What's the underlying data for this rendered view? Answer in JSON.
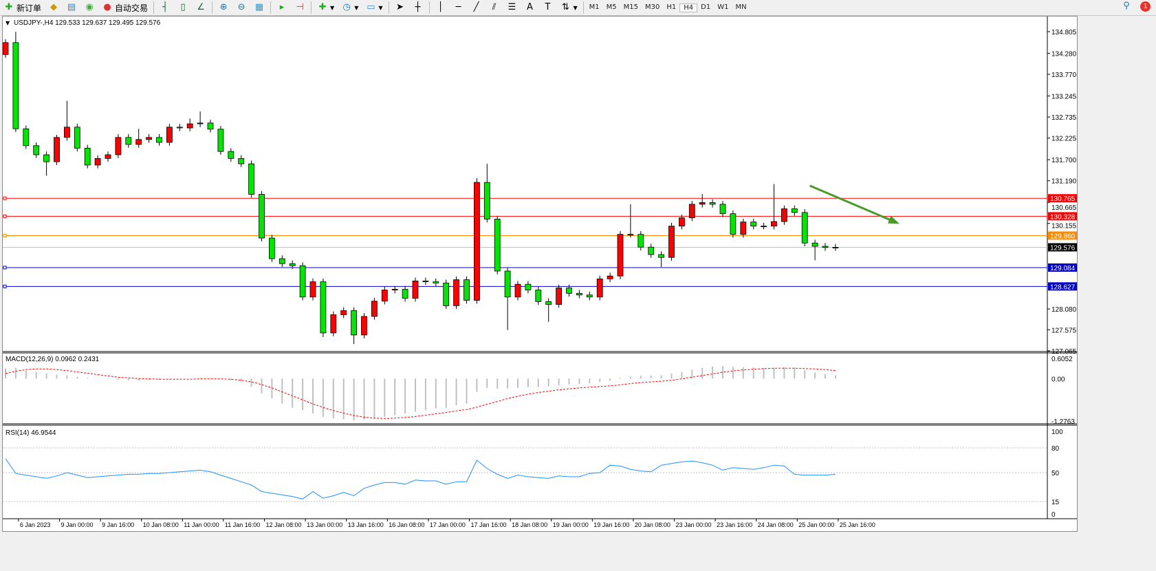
{
  "toolbar": {
    "new_order": "新订单",
    "auto_trading": "自动交易",
    "timeframes": [
      "M1",
      "M5",
      "M15",
      "M30",
      "H1",
      "H4",
      "D1",
      "W1",
      "MN"
    ],
    "active_timeframe": "H4",
    "notification_count": "1"
  },
  "chart": {
    "header": "USDJPY-,H4  129.533 129.637 129.495 129.576",
    "price_ticks": [
      "134.805",
      "134.280",
      "133.770",
      "133.245",
      "132.735",
      "132.225",
      "131.700",
      "131.190",
      "130.665",
      "130.155",
      "128.080",
      "127.575",
      "127.065"
    ],
    "price_range": [
      127.065,
      134.805
    ],
    "bull_color": "#ff0000",
    "bear_color": "#00e600",
    "time_labels": [
      "6 Jan 2023",
      "9 Jan 00:00",
      "9 Jan 16:00",
      "10 Jan 08:00",
      "11 Jan 00:00",
      "11 Jan 16:00",
      "12 Jan 08:00",
      "13 Jan 00:00",
      "13 Jan 16:00",
      "16 Jan 08:00",
      "17 Jan 00:00",
      "17 Jan 16:00",
      "18 Jan 08:00",
      "19 Jan 00:00",
      "19 Jan 16:00",
      "20 Jan 08:00",
      "23 Jan 00:00",
      "23 Jan 16:00",
      "24 Jan 08:00",
      "25 Jan 00:00",
      "25 Jan 16:00"
    ],
    "levels": [
      {
        "price": 130.765,
        "label": "130.765",
        "color": "#ff0000"
      },
      {
        "price": 130.328,
        "label": "130.328",
        "color": "#ff0000"
      },
      {
        "price": 129.86,
        "label": "129.860",
        "color": "#ff8c00"
      },
      {
        "price": 129.576,
        "label": "129.576",
        "color": "#c0c0c0",
        "label_bg": "#000000"
      },
      {
        "price": 129.084,
        "label": "129.084",
        "color": "#0000cc"
      },
      {
        "price": 128.627,
        "label": "128.627",
        "color": "#0000cc"
      }
    ],
    "arrow": {
      "from": [
        78.5,
        131.07
      ],
      "to": [
        87,
        130.17
      ],
      "color": "#4a9a2a"
    },
    "closes": [
      134.54,
      132.45,
      132.04,
      131.82,
      131.65,
      132.24,
      132.49,
      131.98,
      131.57,
      131.73,
      131.82,
      132.24,
      132.07,
      132.19,
      132.24,
      132.12,
      132.49,
      132.47,
      132.57,
      132.59,
      132.44,
      131.9,
      131.73,
      131.6,
      130.86,
      129.8,
      129.3,
      129.18,
      129.13,
      128.37,
      128.74,
      127.5,
      127.94,
      128.04,
      127.45,
      127.9,
      128.27,
      128.54,
      128.56,
      128.34,
      128.76,
      128.74,
      128.71,
      128.16,
      128.79,
      128.29,
      131.15,
      130.26,
      129.0,
      128.37,
      128.68,
      128.54,
      128.26,
      128.19,
      128.59,
      128.46,
      128.42,
      128.37,
      128.81,
      128.88,
      129.89,
      129.89,
      129.58,
      129.4,
      129.33,
      130.09,
      130.29,
      130.62,
      130.66,
      130.62,
      130.39,
      129.89,
      130.19,
      130.09,
      130.09,
      130.2,
      130.51,
      130.42,
      129.68,
      129.6,
      129.57,
      129.576
    ],
    "first_open": 134.25,
    "wick_highs": {
      "0": 134.62,
      "1": 134.8,
      "5": 132.3,
      "6": 133.13,
      "13": 132.45,
      "18": 132.7,
      "19": 132.87,
      "46": 131.25,
      "47": 131.6,
      "61": 130.62,
      "68": 130.87,
      "75": 131.11
    },
    "wick_lows": {
      "4": 131.31,
      "31": 127.4,
      "34": 127.23,
      "49": 127.57,
      "53": 127.77,
      "64": 129.1,
      "79": 129.26
    }
  },
  "macd": {
    "label": "MACD(12,26,9) 0.0962 0.2431",
    "ticks": [
      "0.6052",
      "0.00",
      "-1.2763"
    ],
    "range": [
      -1.2763,
      0.6052
    ],
    "hist": [
      0.3,
      0.32,
      0.25,
      0.2,
      0.15,
      0.12,
      0.1,
      0.05,
      0.02,
      0.0,
      -0.02,
      -0.04,
      -0.05,
      -0.06,
      -0.05,
      -0.04,
      -0.02,
      -0.01,
      0.0,
      0.02,
      0.02,
      0.0,
      -0.05,
      -0.1,
      -0.25,
      -0.45,
      -0.6,
      -0.75,
      -0.88,
      -0.95,
      -1.05,
      -1.15,
      -1.2,
      -1.22,
      -1.25,
      -1.24,
      -1.2,
      -1.15,
      -1.1,
      -1.05,
      -1.0,
      -0.95,
      -0.9,
      -0.88,
      -0.8,
      -0.75,
      -0.4,
      -0.28,
      -0.3,
      -0.3,
      -0.28,
      -0.26,
      -0.25,
      -0.24,
      -0.2,
      -0.18,
      -0.16,
      -0.14,
      -0.1,
      -0.07,
      0.02,
      0.06,
      0.08,
      0.09,
      0.1,
      0.15,
      0.2,
      0.27,
      0.32,
      0.36,
      0.37,
      0.35,
      0.34,
      0.33,
      0.32,
      0.32,
      0.34,
      0.33,
      0.25,
      0.18,
      0.13,
      0.1
    ],
    "signal": [
      0.15,
      0.22,
      0.27,
      0.29,
      0.29,
      0.27,
      0.24,
      0.2,
      0.16,
      0.12,
      0.08,
      0.04,
      0.02,
      0.0,
      -0.01,
      -0.02,
      -0.02,
      -0.02,
      -0.02,
      -0.01,
      -0.01,
      -0.01,
      -0.02,
      -0.05,
      -0.1,
      -0.18,
      -0.28,
      -0.4,
      -0.52,
      -0.64,
      -0.76,
      -0.87,
      -0.96,
      -1.04,
      -1.11,
      -1.16,
      -1.19,
      -1.2,
      -1.19,
      -1.17,
      -1.14,
      -1.1,
      -1.06,
      -1.02,
      -0.97,
      -0.93,
      -0.86,
      -0.77,
      -0.69,
      -0.6,
      -0.53,
      -0.47,
      -0.42,
      -0.38,
      -0.34,
      -0.31,
      -0.28,
      -0.26,
      -0.24,
      -0.22,
      -0.19,
      -0.15,
      -0.12,
      -0.1,
      -0.08,
      -0.05,
      -0.01,
      0.04,
      0.09,
      0.14,
      0.19,
      0.23,
      0.26,
      0.28,
      0.3,
      0.31,
      0.31,
      0.31,
      0.3,
      0.29,
      0.27,
      0.24
    ],
    "hist_color": "#c0c0c0",
    "signal_color": "#ff0000"
  },
  "rsi": {
    "label": "RSI(14) 46.9544",
    "ticks": [
      "100",
      "80",
      "50",
      "15",
      "0"
    ],
    "levels": [
      80,
      50,
      15
    ],
    "values": [
      67,
      49,
      47,
      45,
      43,
      46,
      50,
      47,
      44,
      45,
      46,
      47,
      48,
      48,
      49,
      49,
      50,
      51,
      52,
      53,
      51,
      47,
      43,
      39,
      35,
      27,
      25,
      23,
      21,
      18,
      27,
      19,
      22,
      26,
      22,
      31,
      35,
      38,
      38,
      36,
      41,
      40,
      40,
      36,
      39,
      39,
      65,
      55,
      48,
      43,
      47,
      45,
      44,
      43,
      46,
      45,
      45,
      49,
      50,
      59,
      58,
      54,
      52,
      51,
      59,
      61,
      63,
      64,
      62,
      59,
      53,
      56,
      55,
      54,
      56,
      59,
      58,
      48,
      47,
      47,
      47,
      48
    ],
    "line_color": "#1e90ff"
  }
}
